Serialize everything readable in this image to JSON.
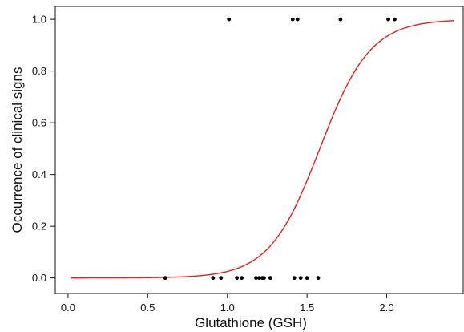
{
  "chart_data": {
    "type": "scatter",
    "title": "",
    "xlabel": "Glutathione (GSH)",
    "ylabel": "Occurrence of clinical signs",
    "xlim": [
      -0.08,
      2.48
    ],
    "ylim": [
      -0.06,
      1.05
    ],
    "xticks": [
      0.0,
      0.5,
      1.0,
      1.5,
      2.0
    ],
    "xtick_labels": [
      "0.0",
      "0.5",
      "1.0",
      "1.5",
      "2.0"
    ],
    "yticks": [
      0.0,
      0.2,
      0.4,
      0.6,
      0.8,
      1.0
    ],
    "ytick_labels": [
      "0.0",
      "0.2",
      "0.4",
      "0.6",
      "0.8",
      "1.0"
    ],
    "grid": false,
    "legend": "none",
    "series": [
      {
        "type": "scatter",
        "color": "#000000",
        "points": [
          {
            "x": 0.61,
            "y": 0
          },
          {
            "x": 0.91,
            "y": 0
          },
          {
            "x": 0.96,
            "y": 0
          },
          {
            "x": 1.06,
            "y": 0
          },
          {
            "x": 1.09,
            "y": 0
          },
          {
            "x": 1.18,
            "y": 0
          },
          {
            "x": 1.2,
            "y": 0
          },
          {
            "x": 1.22,
            "y": 0
          },
          {
            "x": 1.23,
            "y": 0
          },
          {
            "x": 1.27,
            "y": 0
          },
          {
            "x": 1.42,
            "y": 0
          },
          {
            "x": 1.46,
            "y": 0
          },
          {
            "x": 1.5,
            "y": 0
          },
          {
            "x": 1.57,
            "y": 0
          },
          {
            "x": 1.01,
            "y": 1
          },
          {
            "x": 1.41,
            "y": 1
          },
          {
            "x": 1.44,
            "y": 1
          },
          {
            "x": 1.71,
            "y": 1
          },
          {
            "x": 2.01,
            "y": 1
          },
          {
            "x": 2.05,
            "y": 1
          }
        ]
      },
      {
        "type": "line",
        "color": "#ee1c1c",
        "model": "logistic",
        "x_range": [
          0.02,
          2.42
        ],
        "midpoint": 1.58,
        "slope": 6.3
      }
    ]
  }
}
